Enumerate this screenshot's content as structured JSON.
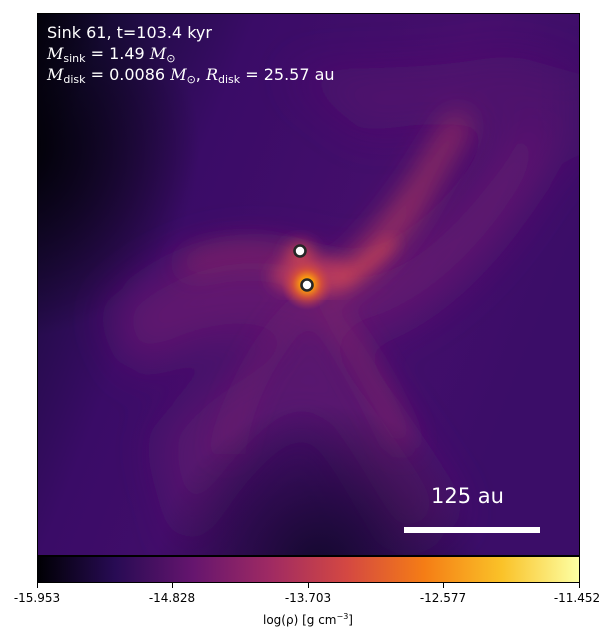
{
  "annotation": {
    "line1": "Sink 61, t=103.4 kyr",
    "sink_mass_label": "sink",
    "sink_mass_value": " = 1.49 ",
    "disk_mass_label": "disk",
    "disk_mass_value": " = 0.0086 ",
    "disk_radius_label": "disk",
    "disk_radius_value": " = 25.57 au",
    "mass_symbol": "M",
    "radius_symbol": "R",
    "solar_symbol": "⊙"
  },
  "scale_bar": {
    "label": "125 au"
  },
  "colorbar": {
    "title": "log(ρ) [g cm",
    "title_exp": "−3",
    "title_end": "]",
    "ticks": [
      "-15.953",
      "-14.828",
      "-13.703",
      "-12.577",
      "-11.452"
    ],
    "colors": [
      "#000004",
      "#280b54",
      "#65156e",
      "#9f2a63",
      "#d44842",
      "#f57d15",
      "#fac228",
      "#fcffa4"
    ]
  },
  "sinks": [
    {
      "name": "sink-a"
    },
    {
      "name": "sink-b"
    }
  ]
}
